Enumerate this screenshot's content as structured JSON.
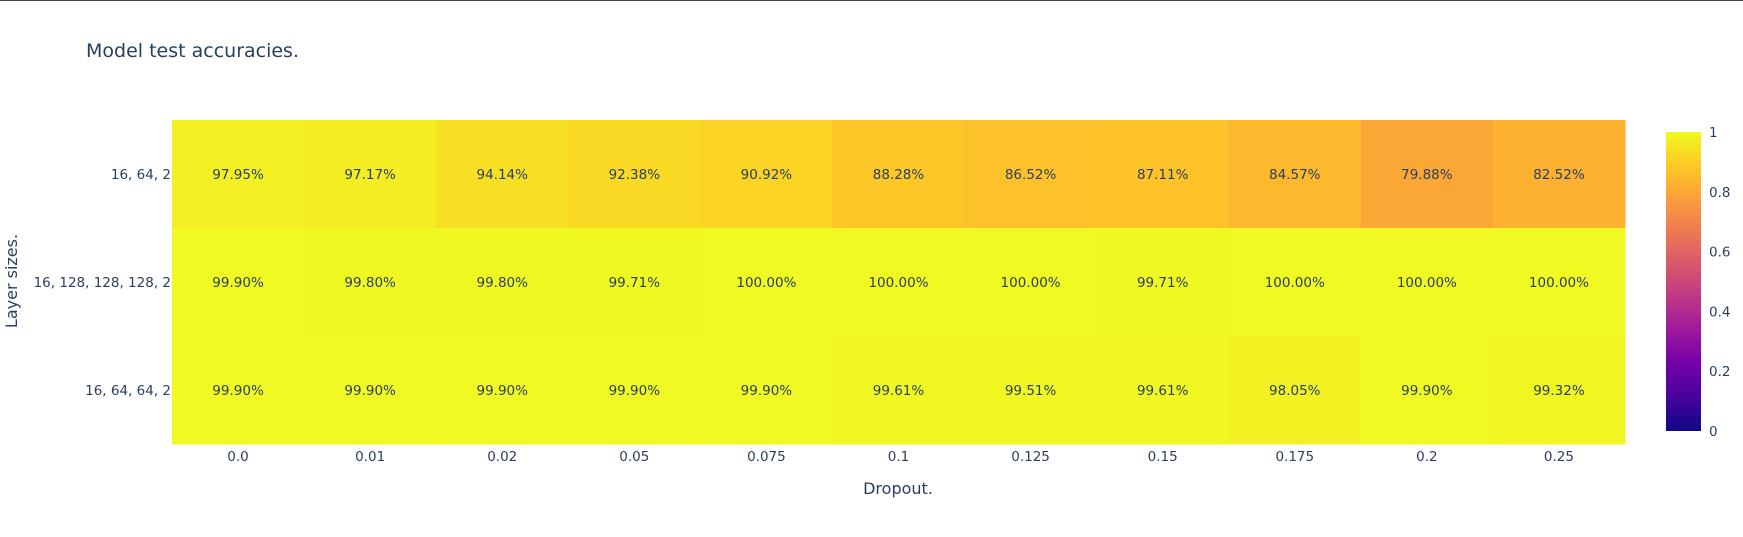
{
  "chart_data": {
    "type": "heatmap",
    "title": "Model test accuracies.",
    "xlabel": "Dropout.",
    "ylabel": "Layer sizes.",
    "x": [
      "0.0",
      "0.01",
      "0.02",
      "0.05",
      "0.075",
      "0.1",
      "0.125",
      "0.15",
      "0.175",
      "0.2",
      "0.25"
    ],
    "y": [
      "16, 64, 2",
      "16, 128, 128, 128, 2",
      "16, 64, 64, 2"
    ],
    "z": [
      [
        0.9795,
        0.9717,
        0.9414,
        0.9238,
        0.9092,
        0.8828,
        0.8652,
        0.8711,
        0.8457,
        0.7988,
        0.8252
      ],
      [
        0.999,
        0.998,
        0.998,
        0.9971,
        1.0,
        1.0,
        1.0,
        0.9971,
        1.0,
        1.0,
        1.0
      ],
      [
        0.999,
        0.999,
        0.999,
        0.999,
        0.999,
        0.9961,
        0.9951,
        0.9961,
        0.9805,
        0.999,
        0.9932
      ]
    ],
    "cell_labels": [
      [
        "97.95%",
        "97.17%",
        "94.14%",
        "92.38%",
        "90.92%",
        "88.28%",
        "86.52%",
        "87.11%",
        "84.57%",
        "79.88%",
        "82.52%"
      ],
      [
        "99.90%",
        "99.80%",
        "99.80%",
        "99.71%",
        "100.00%",
        "100.00%",
        "100.00%",
        "99.71%",
        "100.00%",
        "100.00%",
        "100.00%"
      ],
      [
        "99.90%",
        "99.90%",
        "99.90%",
        "99.90%",
        "99.90%",
        "99.61%",
        "99.51%",
        "99.61%",
        "98.05%",
        "99.90%",
        "99.32%"
      ]
    ],
    "zlim": [
      0,
      1
    ],
    "colorbar_ticks": [
      "0",
      "0.2",
      "0.4",
      "0.6",
      "0.8",
      "1"
    ],
    "colorscale": "plasma",
    "colorbar_position": "right"
  }
}
